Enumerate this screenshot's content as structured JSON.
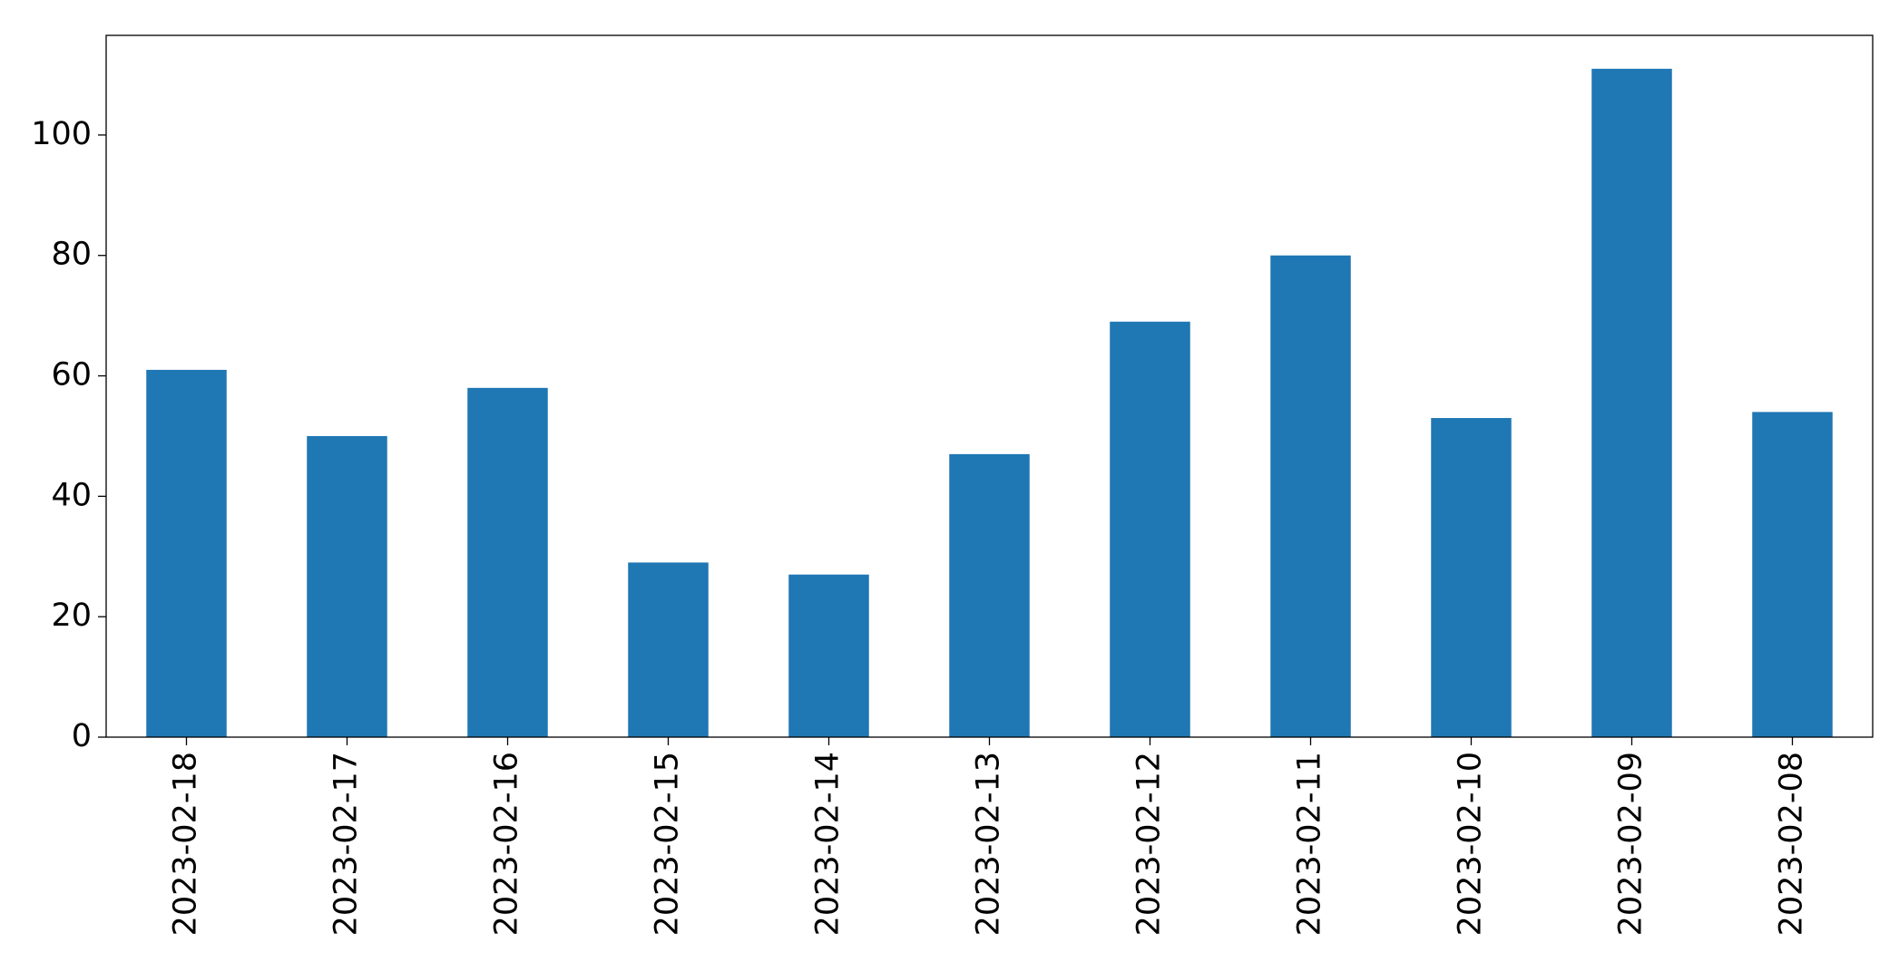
{
  "chart_data": {
    "type": "bar",
    "categories": [
      "2023-02-18",
      "2023-02-17",
      "2023-02-16",
      "2023-02-15",
      "2023-02-14",
      "2023-02-13",
      "2023-02-12",
      "2023-02-11",
      "2023-02-10",
      "2023-02-09",
      "2023-02-08"
    ],
    "values": [
      61,
      50,
      58,
      29,
      27,
      47,
      69,
      80,
      53,
      111,
      54
    ],
    "color": "#1f77b4",
    "ylim": [
      0,
      116.55
    ],
    "yticks": [
      0,
      20,
      40,
      60,
      80,
      100
    ],
    "grid": false
  }
}
